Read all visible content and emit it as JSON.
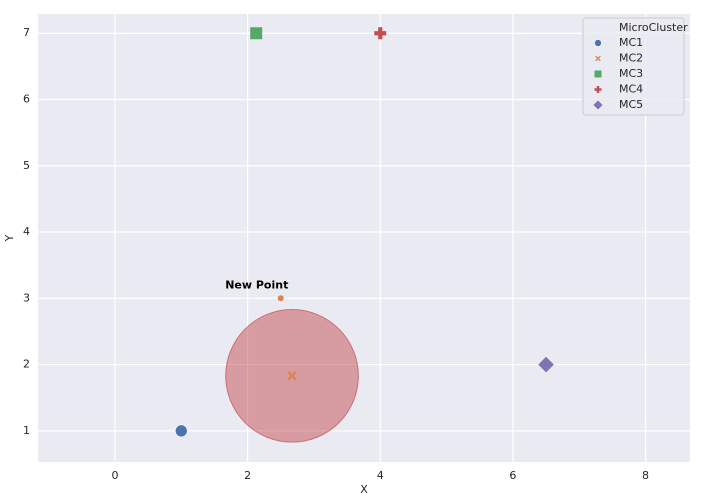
{
  "chart_data": {
    "type": "scatter",
    "xlabel": "X",
    "ylabel": "Y",
    "xlim": [
      -1.16,
      8.67
    ],
    "ylim": [
      0.53,
      7.29
    ],
    "xticks": [
      0,
      2,
      4,
      6,
      8
    ],
    "yticks": [
      1,
      2,
      3,
      4,
      5,
      6,
      7
    ],
    "grid": true,
    "legend_title": "MicroCluster",
    "legend_position": "upper right",
    "series": [
      {
        "name": "MC1",
        "color": "#4c72b0",
        "marker": "circle",
        "x": [
          1
        ],
        "y": [
          1
        ]
      },
      {
        "name": "MC2",
        "color": "#dd8452",
        "marker": "x",
        "x": [
          2.67
        ],
        "y": [
          1.83
        ]
      },
      {
        "name": "MC3",
        "color": "#55a868",
        "marker": "square",
        "x": [
          2.13
        ],
        "y": [
          7
        ]
      },
      {
        "name": "MC4",
        "color": "#c44e52",
        "marker": "plus",
        "x": [
          4
        ],
        "y": [
          7
        ]
      },
      {
        "name": "MC5",
        "color": "#8172b3",
        "marker": "diamond",
        "x": [
          6.5
        ],
        "y": [
          2
        ]
      }
    ],
    "radius_circle": {
      "x": 2.67,
      "y": 1.83,
      "radius": 1.0,
      "color": "#c44e52"
    },
    "new_point": {
      "label": "New Point",
      "x": 2.5,
      "y": 3,
      "color": "#dd8452"
    }
  }
}
